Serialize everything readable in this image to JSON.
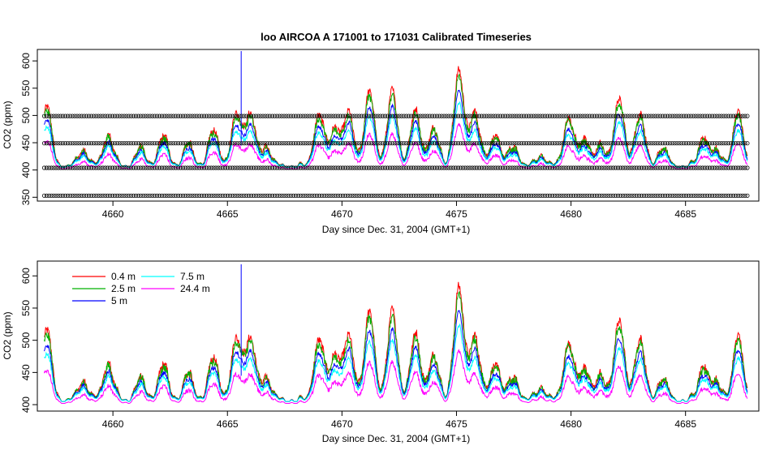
{
  "chart_data": [
    {
      "type": "line",
      "title": "loo   AIRCOA  A    171001  to  171031   Calibrated Timeseries",
      "xlabel": "Day since Dec. 31, 2004 (GMT+1)",
      "ylabel": "CO2 (ppm)",
      "xlim": [
        4656.7,
        4688.2
      ],
      "ylim": [
        343,
        621
      ],
      "xticks": [
        4660,
        4665,
        4670,
        4675,
        4680,
        4685
      ],
      "yticks": [
        350,
        400,
        450,
        500,
        550,
        600
      ],
      "grid": false,
      "series_colors": {
        "0.4 m": "#ff0000",
        "2.5 m": "#00b000",
        "5 m": "#0000ff",
        "7.5 m": "#00ffff",
        "24.4 m": "#ff00ff"
      },
      "calibration_standards": {
        "marker": "open circle",
        "color": "#000000",
        "x_range": [
          4657.0,
          4687.7
        ],
        "levels_ppm": [
          353,
          404,
          449,
          499
        ]
      },
      "spike": {
        "x": 4665.6,
        "y_top": 618,
        "color": "#0000ff"
      },
      "baseline_ppm": 405,
      "events": [
        {
          "x": 4657.1,
          "y": 515
        },
        {
          "x": 4658.7,
          "y": 435
        },
        {
          "x": 4659.8,
          "y": 462
        },
        {
          "x": 4661.2,
          "y": 438
        },
        {
          "x": 4662.2,
          "y": 458
        },
        {
          "x": 4663.3,
          "y": 445
        },
        {
          "x": 4664.4,
          "y": 470
        },
        {
          "x": 4665.4,
          "y": 500
        },
        {
          "x": 4666.0,
          "y": 500
        },
        {
          "x": 4666.7,
          "y": 440
        },
        {
          "x": 4669.0,
          "y": 500
        },
        {
          "x": 4669.7,
          "y": 475
        },
        {
          "x": 4670.3,
          "y": 500
        },
        {
          "x": 4671.2,
          "y": 540
        },
        {
          "x": 4672.2,
          "y": 540
        },
        {
          "x": 4673.2,
          "y": 505
        },
        {
          "x": 4674.0,
          "y": 475
        },
        {
          "x": 4675.1,
          "y": 578
        },
        {
          "x": 4675.8,
          "y": 505
        },
        {
          "x": 4676.7,
          "y": 462
        },
        {
          "x": 4677.5,
          "y": 440
        },
        {
          "x": 4678.7,
          "y": 425
        },
        {
          "x": 4679.9,
          "y": 495
        },
        {
          "x": 4680.6,
          "y": 455
        },
        {
          "x": 4681.3,
          "y": 440
        },
        {
          "x": 4682.1,
          "y": 528
        },
        {
          "x": 4683.0,
          "y": 500
        },
        {
          "x": 4684.0,
          "y": 438
        },
        {
          "x": 4685.8,
          "y": 458
        },
        {
          "x": 4686.4,
          "y": 430
        },
        {
          "x": 4687.3,
          "y": 502
        }
      ]
    },
    {
      "type": "line",
      "title": "",
      "xlabel": "Day since Dec. 31, 2004 (GMT+1)",
      "ylabel": "CO2 (ppm)",
      "xlim": [
        4656.7,
        4688.2
      ],
      "ylim": [
        390,
        623
      ],
      "xticks": [
        4660,
        4665,
        4670,
        4675,
        4680,
        4685
      ],
      "yticks": [
        400,
        450,
        500,
        550,
        600
      ],
      "grid": false,
      "legend_position": "top-left",
      "series": [
        {
          "name": "0.4 m",
          "color": "#ff0000"
        },
        {
          "name": "2.5 m",
          "color": "#00b000"
        },
        {
          "name": "5 m",
          "color": "#0000ff"
        },
        {
          "name": "7.5 m",
          "color": "#00ffff"
        },
        {
          "name": "24.4 m",
          "color": "#ff00ff"
        }
      ]
    }
  ]
}
